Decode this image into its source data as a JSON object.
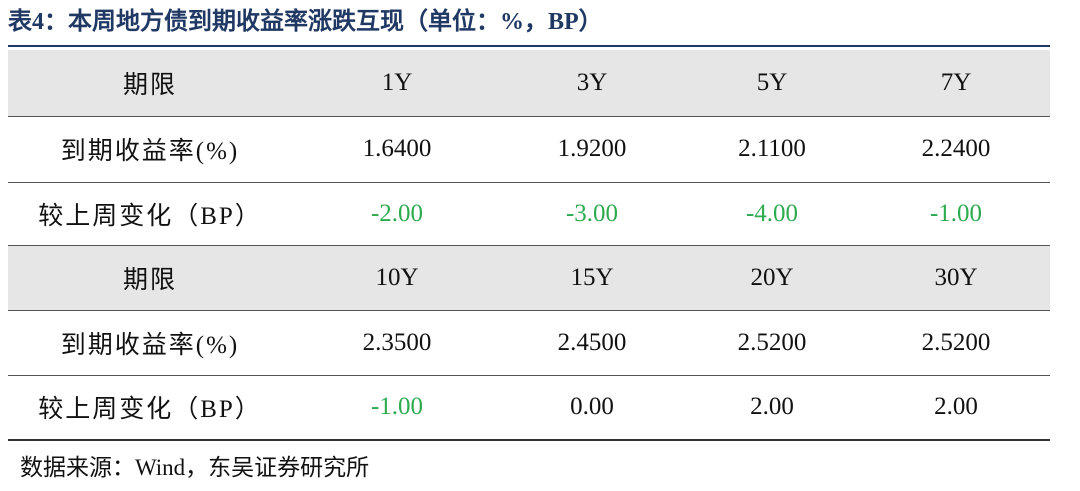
{
  "header": {
    "title": "表4：本周地方债到期收益率涨跌互现（单位：%，BP）"
  },
  "table": {
    "rows": [
      [
        "期限",
        "1Y",
        "3Y",
        "5Y",
        "7Y"
      ],
      [
        "到期收益率(%)",
        "1.6400",
        "1.9200",
        "2.1100",
        "2.2400"
      ],
      [
        "较上周变化（BP）",
        "-2.00",
        "-3.00",
        "-4.00",
        "-1.00"
      ],
      [
        "期限",
        "10Y",
        "15Y",
        "20Y",
        "30Y"
      ],
      [
        "到期收益率(%)",
        "2.3500",
        "2.4500",
        "2.5200",
        "2.5200"
      ],
      [
        "较上周变化（BP）",
        "-1.00",
        "0.00",
        "2.00",
        "2.00"
      ]
    ]
  },
  "source": "数据来源：Wind，东吴证券研究所"
}
